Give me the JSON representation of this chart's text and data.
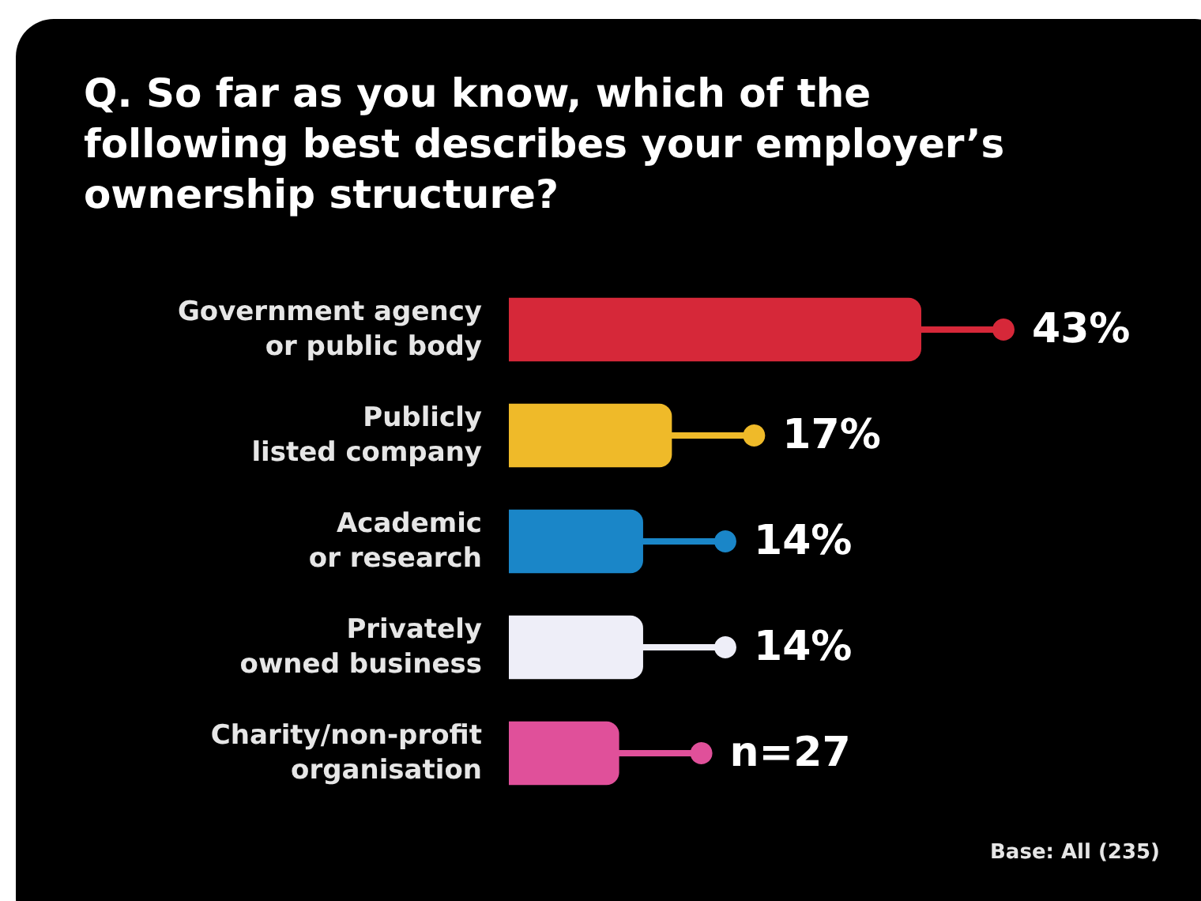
{
  "chart_data": {
    "type": "bar",
    "orientation": "horizontal",
    "title": "Q. So far as you know, which of the following best describes your employer’s ownership structure?",
    "categories": [
      "Government agency\nor public body",
      "Publicly\nlisted company",
      "Academic\nor research",
      "Privately\nowned business",
      "Charity/non-profit\norganisation"
    ],
    "values": [
      43,
      17,
      14,
      14,
      11.5
    ],
    "colors": [
      "#d62839",
      "#efba29",
      "#1a86c8",
      "#eeeef8",
      "#e0509a"
    ],
    "value_labels": [
      "43%",
      "17%",
      "14%",
      "14%",
      null
    ],
    "annotations": [
      {
        "text": "n=27",
        "x": 11.5,
        "y": "Charity/non-profit\norganisation"
      },
      "Base: All (235)"
    ]
  }
}
